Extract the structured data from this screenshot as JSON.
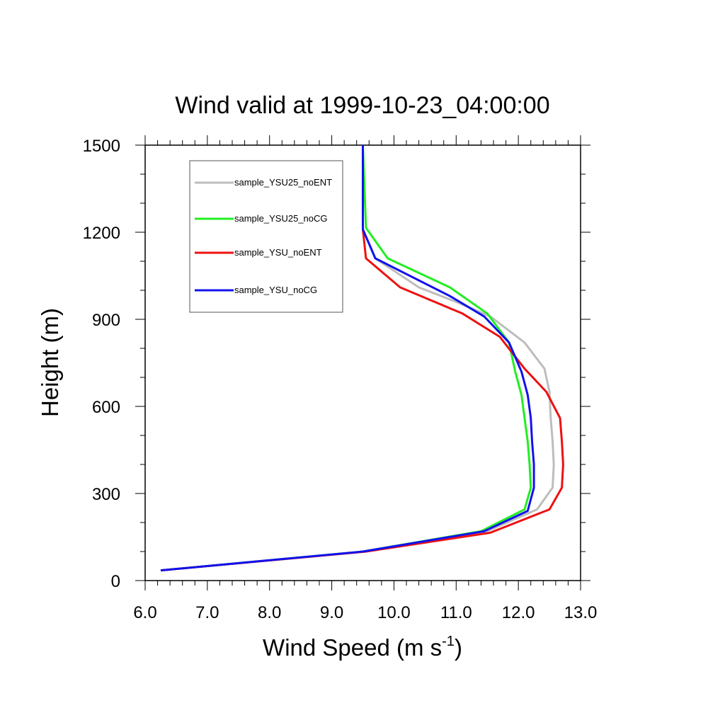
{
  "chart_data": {
    "type": "line",
    "title": "Wind valid at 1999-10-23_04:00:00",
    "xlabel": "Wind Speed (m s",
    "xlabel_superscript": "-1",
    "xlabel_close": ")",
    "ylabel": "Height (m)",
    "xlim": [
      6.0,
      13.0
    ],
    "ylim": [
      0,
      1500
    ],
    "x_ticks": [
      6.0,
      7.0,
      8.0,
      9.0,
      10.0,
      11.0,
      12.0,
      13.0
    ],
    "x_tick_labels": [
      "6.0",
      "7.0",
      "8.0",
      "9.0",
      "10.0",
      "11.0",
      "12.0",
      "13.0"
    ],
    "y_ticks": [
      0,
      300,
      600,
      900,
      1200,
      1500
    ],
    "y_tick_labels": [
      "0",
      "300",
      "600",
      "900",
      "1200",
      "1500"
    ],
    "grid": false,
    "legend_position": "top-left",
    "series": [
      {
        "name": "sample_YSU25_noENT",
        "color": "#bdbdbd",
        "points": [
          [
            6.25,
            35
          ],
          [
            9.55,
            100
          ],
          [
            11.5,
            170
          ],
          [
            12.3,
            245
          ],
          [
            12.55,
            320
          ],
          [
            12.57,
            400
          ],
          [
            12.55,
            480
          ],
          [
            12.52,
            560
          ],
          [
            12.5,
            650
          ],
          [
            12.42,
            730
          ],
          [
            12.1,
            820
          ],
          [
            11.55,
            910
          ],
          [
            11.0,
            960
          ],
          [
            10.4,
            1010
          ],
          [
            9.7,
            1110
          ],
          [
            9.5,
            1210
          ],
          [
            9.5,
            1500
          ]
        ]
      },
      {
        "name": "sample_YSU25_noCG",
        "color": "#22ee22",
        "points": [
          [
            6.25,
            35
          ],
          [
            9.5,
            100
          ],
          [
            11.4,
            170
          ],
          [
            12.1,
            245
          ],
          [
            12.2,
            320
          ],
          [
            12.18,
            400
          ],
          [
            12.15,
            480
          ],
          [
            12.1,
            560
          ],
          [
            12.05,
            640
          ],
          [
            11.95,
            720
          ],
          [
            11.85,
            820
          ],
          [
            11.5,
            920
          ],
          [
            10.9,
            1010
          ],
          [
            9.9,
            1110
          ],
          [
            9.55,
            1215
          ],
          [
            9.5,
            1500
          ]
        ]
      },
      {
        "name": "sample_YSU_noENT",
        "color": "#ee1111",
        "points": [
          [
            6.25,
            35
          ],
          [
            9.55,
            100
          ],
          [
            11.55,
            165
          ],
          [
            12.5,
            245
          ],
          [
            12.7,
            320
          ],
          [
            12.72,
            400
          ],
          [
            12.7,
            480
          ],
          [
            12.67,
            560
          ],
          [
            12.45,
            650
          ],
          [
            12.1,
            730
          ],
          [
            11.7,
            840
          ],
          [
            11.1,
            920
          ],
          [
            10.1,
            1010
          ],
          [
            9.55,
            1110
          ],
          [
            9.5,
            1210
          ],
          [
            9.5,
            1500
          ]
        ]
      },
      {
        "name": "sample_YSU_noCG",
        "color": "#1111ee",
        "points": [
          [
            6.25,
            35
          ],
          [
            9.5,
            100
          ],
          [
            11.45,
            170
          ],
          [
            12.15,
            240
          ],
          [
            12.25,
            320
          ],
          [
            12.25,
            400
          ],
          [
            12.22,
            480
          ],
          [
            12.2,
            560
          ],
          [
            12.15,
            640
          ],
          [
            12.05,
            720
          ],
          [
            11.85,
            820
          ],
          [
            11.45,
            910
          ],
          [
            10.9,
            980
          ],
          [
            9.7,
            1110
          ],
          [
            9.5,
            1210
          ],
          [
            9.5,
            1500
          ]
        ]
      }
    ]
  }
}
